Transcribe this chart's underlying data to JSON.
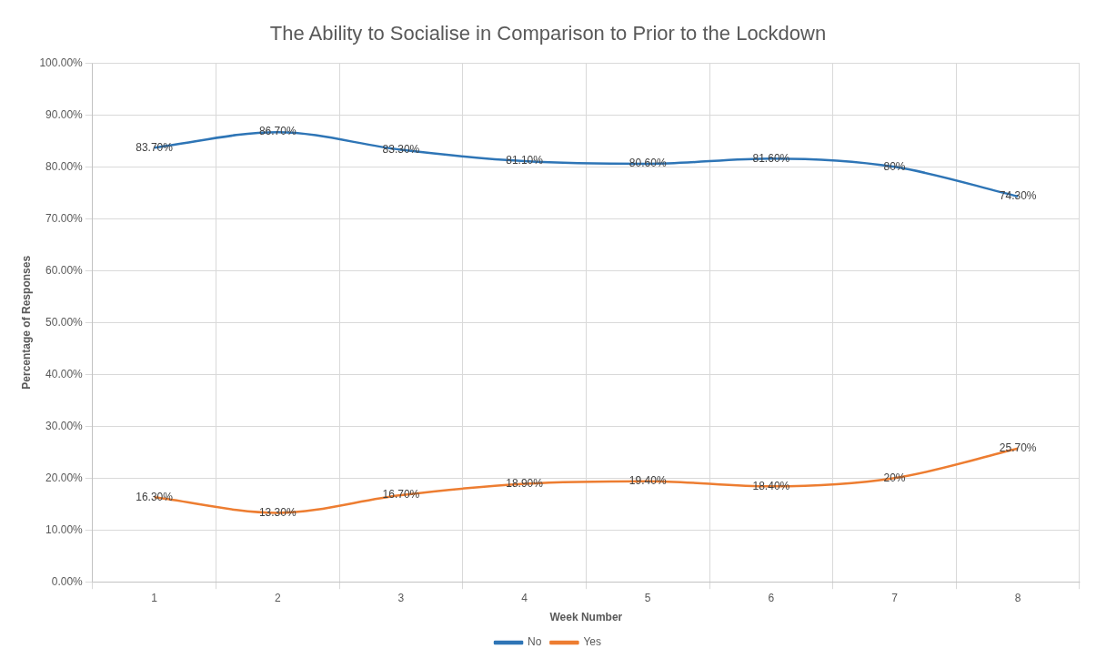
{
  "chart_data": {
    "type": "line",
    "title": "The Ability to Socialise in Comparison to Prior to the Lockdown",
    "xlabel": "Week Number",
    "ylabel": "Percentage of Responses",
    "categories": [
      "1",
      "2",
      "3",
      "4",
      "5",
      "6",
      "7",
      "8"
    ],
    "series": [
      {
        "name": "No",
        "color": "#2e75b6",
        "values": [
          83.7,
          86.7,
          83.3,
          81.1,
          80.6,
          81.6,
          80,
          74.3
        ],
        "value_labels": [
          "83.70%",
          "86.70%",
          "83.30%",
          "81.10%",
          "80.60%",
          "81.60%",
          "80%",
          "74.30%"
        ]
      },
      {
        "name": "Yes",
        "color": "#ed7d31",
        "values": [
          16.3,
          13.3,
          16.7,
          18.9,
          19.4,
          18.4,
          20,
          25.7
        ],
        "value_labels": [
          "16.30%",
          "13.30%",
          "16.70%",
          "18.90%",
          "19.40%",
          "18.40%",
          "20%",
          "25.70%"
        ]
      }
    ],
    "ylim": [
      0,
      100
    ],
    "yticks": [
      {
        "value": 0,
        "label": "0.00%"
      },
      {
        "value": 10,
        "label": "10.00%"
      },
      {
        "value": 20,
        "label": "20.00%"
      },
      {
        "value": 30,
        "label": "30.00%"
      },
      {
        "value": 40,
        "label": "40.00%"
      },
      {
        "value": 50,
        "label": "50.00%"
      },
      {
        "value": 60,
        "label": "60.00%"
      },
      {
        "value": 70,
        "label": "70.00%"
      },
      {
        "value": 80,
        "label": "80.00%"
      },
      {
        "value": 90,
        "label": "90.00%"
      },
      {
        "value": 100,
        "label": "100.00%"
      }
    ],
    "grid": true,
    "legend": "bottom",
    "marker": "none",
    "line_style": "solid"
  }
}
